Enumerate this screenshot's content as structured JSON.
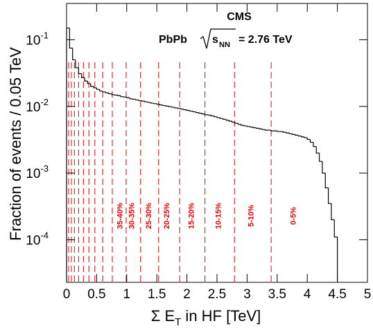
{
  "chart_data": {
    "type": "histogram",
    "title": "CMS",
    "subtitle": {
      "system": "PbPb",
      "sqrt_symbol": "s",
      "sqrt_subscript": "NN",
      "energy": "= 2.76 TeV"
    },
    "x_label": {
      "main": "Σ E",
      "subscript": "T",
      "rest": " in HF [TeV]"
    },
    "y_label": "Fraction of events / 0.05 TeV",
    "log_y": true,
    "color": "#000000",
    "bins": [
      0,
      0.05,
      0.1,
      0.15,
      0.2,
      0.25,
      0.3,
      0.35,
      0.4,
      0.45,
      0.5,
      0.55,
      0.6,
      0.65,
      0.7,
      0.75,
      0.8,
      0.85,
      0.9,
      0.95,
      1,
      1.05,
      1.1,
      1.15,
      1.2,
      1.25,
      1.3,
      1.35,
      1.4,
      1.45,
      1.5,
      1.55,
      1.6,
      1.65,
      1.7,
      1.75,
      1.8,
      1.85,
      1.9,
      1.95,
      2,
      2.05,
      2.1,
      2.15,
      2.2,
      2.25,
      2.3,
      2.35,
      2.4,
      2.45,
      2.5,
      2.55,
      2.6,
      2.65,
      2.7,
      2.75,
      2.8,
      2.85,
      2.9,
      2.95,
      3,
      3.05,
      3.1,
      3.15,
      3.2,
      3.25,
      3.3,
      3.35,
      3.4,
      3.45,
      3.5,
      3.55,
      3.6,
      3.65,
      3.7,
      3.75,
      3.8,
      3.85,
      3.9,
      3.95,
      4,
      4.05,
      4.1,
      4.15,
      4.2,
      4.25,
      4.3,
      4.35,
      4.4,
      4.45,
      4.5
    ],
    "values": [
      0.15,
      0.075,
      0.05,
      0.038,
      0.031,
      0.027,
      0.024,
      0.022,
      0.02,
      0.019,
      0.018,
      0.017,
      0.0165,
      0.016,
      0.0155,
      0.015,
      0.0148,
      0.0145,
      0.014,
      0.0138,
      0.0135,
      0.013,
      0.0128,
      0.0125,
      0.0122,
      0.012,
      0.0117,
      0.0115,
      0.0112,
      0.011,
      0.0108,
      0.0105,
      0.0103,
      0.0101,
      0.0099,
      0.0097,
      0.0095,
      0.0093,
      0.0091,
      0.0089,
      0.0087,
      0.0085,
      0.0083,
      0.0081,
      0.0079,
      0.0077,
      0.0075,
      0.0074,
      0.0072,
      0.007,
      0.0068,
      0.0066,
      0.0064,
      0.0062,
      0.006,
      0.0058,
      0.0056,
      0.0054,
      0.0052,
      0.0051,
      0.005,
      0.0049,
      0.0048,
      0.0047,
      0.0046,
      0.0045,
      0.0044,
      0.0044,
      0.0043,
      0.0043,
      0.0042,
      0.0042,
      0.0041,
      0.004,
      0.0039,
      0.0038,
      0.0037,
      0.0036,
      0.0035,
      0.0034,
      0.0032,
      0.0029,
      0.0025,
      0.002,
      0.0015,
      0.001,
      0.0006,
      0.00035,
      0.0002,
      0.00011
    ],
    "centrality_cuts": {
      "color": "#e00000",
      "x": [
        0.035,
        0.08,
        0.13,
        0.2,
        0.28,
        0.37,
        0.47,
        0.6,
        0.76,
        0.99,
        1.23,
        1.53,
        1.88,
        2.3,
        2.79,
        3.4
      ]
    },
    "annotations": [
      {
        "text": "35-40%",
        "x": 0.88
      },
      {
        "text": "30-35%",
        "x": 1.08
      },
      {
        "text": "25-30%",
        "x": 1.36
      },
      {
        "text": "20-25%",
        "x": 1.66
      },
      {
        "text": "15-20%",
        "x": 2.07
      },
      {
        "text": "10-15%",
        "x": 2.52
      },
      {
        "text": "5-10%",
        "x": 3.06
      },
      {
        "text": "0-5%",
        "x": 3.76
      }
    ],
    "xlim": [
      0,
      5
    ],
    "xticks": [
      0,
      0.5,
      1,
      1.5,
      2,
      2.5,
      3,
      3.5,
      4,
      4.5,
      5
    ],
    "ylim": [
      2.3e-05,
      0.35
    ],
    "yticks": [
      {
        "value": 0.0001,
        "label": "10",
        "exponent": "-4"
      },
      {
        "value": 0.001,
        "label": "10",
        "exponent": "-3"
      },
      {
        "value": 0.01,
        "label": "10",
        "exponent": "-2"
      },
      {
        "value": 0.1,
        "label": "10",
        "exponent": "-1"
      }
    ]
  }
}
